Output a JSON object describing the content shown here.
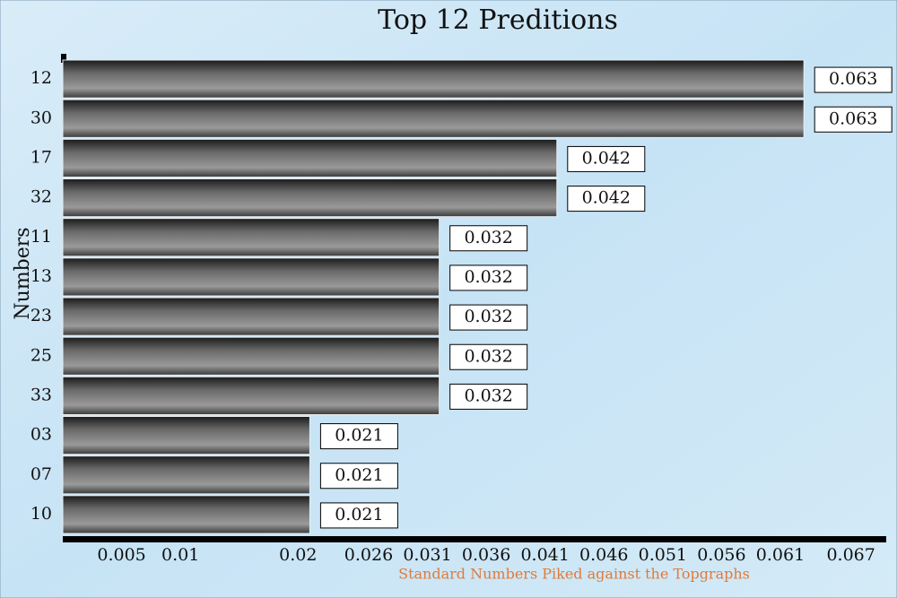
{
  "chart_data": {
    "type": "barh",
    "title": "Top 12 Preditions",
    "x_label": "Standard Numbers Piked against the Topgraphs",
    "y_label": "Numbers",
    "categories": [
      "12",
      "30",
      "17",
      "32",
      "11",
      "13",
      "23",
      "25",
      "33",
      "03",
      "07",
      "10"
    ],
    "values": [
      0.063,
      0.063,
      0.042,
      0.042,
      0.032,
      0.032,
      0.032,
      0.032,
      0.032,
      0.021,
      0.021,
      0.021
    ],
    "xlim": [
      0,
      0.07
    ],
    "xticks": [
      0.005,
      0.01,
      0.02,
      0.026,
      0.031,
      0.036,
      0.041,
      0.046,
      0.051,
      0.056,
      0.061,
      0.067
    ],
    "grid": false
  }
}
